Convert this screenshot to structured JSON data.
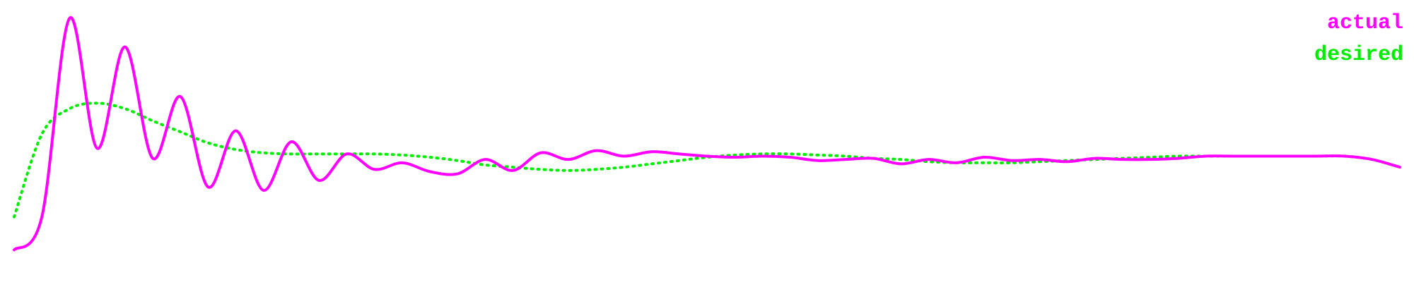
{
  "chart_data": {
    "type": "line",
    "title": "",
    "xlabel": "",
    "ylabel": "",
    "grid": false,
    "axes_visible": false,
    "legend_position": "top-right",
    "x": [
      0.0,
      0.02,
      0.04,
      0.06,
      0.08,
      0.1,
      0.12,
      0.14,
      0.16,
      0.18,
      0.2,
      0.22,
      0.24,
      0.26,
      0.28,
      0.3,
      0.32,
      0.34,
      0.36,
      0.38,
      0.4,
      0.42,
      0.44,
      0.46,
      0.48,
      0.5,
      0.52,
      0.54,
      0.56,
      0.58,
      0.6,
      0.62,
      0.64,
      0.66,
      0.68,
      0.7,
      0.72,
      0.74,
      0.76,
      0.78,
      0.8,
      0.82,
      0.84,
      0.86,
      0.88,
      0.9,
      0.92,
      0.94,
      0.96,
      0.98,
      1.0
    ],
    "series": [
      {
        "name": "actual",
        "color": "#ff00ff",
        "style": "solid",
        "values": [
          -0.85,
          -0.55,
          1.25,
          0.07,
          0.99,
          -0.02,
          0.54,
          -0.28,
          0.23,
          -0.31,
          0.13,
          -0.22,
          0.02,
          -0.12,
          -0.06,
          -0.14,
          -0.16,
          -0.03,
          -0.13,
          0.03,
          -0.03,
          0.05,
          0.0,
          0.04,
          0.02,
          0.0,
          -0.01,
          0.0,
          -0.01,
          -0.04,
          -0.03,
          -0.02,
          -0.07,
          -0.03,
          -0.06,
          -0.01,
          -0.04,
          -0.03,
          -0.05,
          -0.02,
          -0.03,
          -0.03,
          -0.02,
          0.0,
          0.0,
          0.0,
          0.0,
          0.0,
          0.0,
          -0.03,
          -0.1
        ]
      },
      {
        "name": "desired",
        "color": "#00ee00",
        "style": "dotted",
        "values": [
          -0.55,
          0.2,
          0.43,
          0.48,
          0.43,
          0.32,
          0.22,
          0.12,
          0.06,
          0.03,
          0.02,
          0.02,
          0.02,
          0.02,
          0.01,
          -0.01,
          -0.04,
          -0.08,
          -0.1,
          -0.12,
          -0.13,
          -0.12,
          -0.1,
          -0.07,
          -0.04,
          -0.01,
          0.01,
          0.02,
          0.02,
          0.01,
          0.0,
          -0.02,
          -0.03,
          -0.05,
          -0.06,
          -0.06,
          -0.06,
          -0.05,
          -0.04,
          -0.03,
          -0.02,
          -0.01,
          0.0,
          0.0,
          0.0,
          0.0,
          0.0,
          0.0,
          0.0,
          -0.03,
          -0.1
        ]
      }
    ],
    "ylim": [
      -1.0,
      1.3
    ]
  }
}
